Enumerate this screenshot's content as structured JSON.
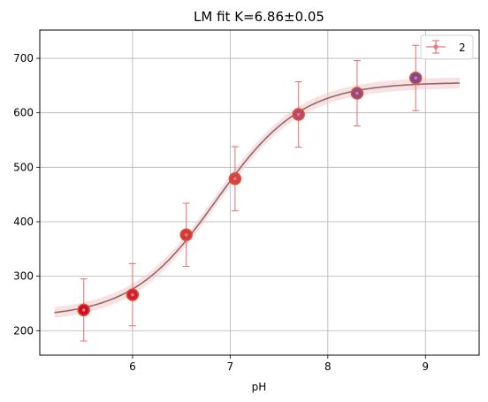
{
  "chart_data": {
    "type": "scatter",
    "title": "LM fit K=6.86±0.05",
    "xlabel": "pH",
    "ylabel": "",
    "xlim": [
      5.05,
      9.55
    ],
    "ylim": [
      155,
      752
    ],
    "xticks": [
      6,
      7,
      8,
      9
    ],
    "yticks": [
      200,
      300,
      400,
      500,
      600,
      700
    ],
    "grid": true,
    "legend_position": "top-right",
    "series": [
      {
        "name": "2",
        "x": [
          5.5,
          6.0,
          6.55,
          7.05,
          7.7,
          8.3,
          8.9
        ],
        "y": [
          238,
          266,
          376,
          479,
          597,
          636,
          664
        ],
        "y_err": [
          57,
          57,
          58,
          59,
          60,
          60,
          60
        ],
        "marker_colors": [
          "#c8102e",
          "#cd1f36",
          "#d23a3a",
          "#d0454a",
          "#b34a6e",
          "#8a4d88",
          "#7a4a9a"
        ]
      }
    ],
    "fit": {
      "model": "sigmoid",
      "bottom": 224,
      "top": 656,
      "K": 6.86,
      "slope": 1.0,
      "x_range": [
        5.2,
        9.35
      ],
      "band": 10,
      "line_color": "#8c6b6b",
      "band_color": "#f4c6cb"
    },
    "colors": {
      "errorbar": "#e8787a",
      "grid": "#b0b0b0",
      "marker_edge": "#e5502f"
    }
  }
}
